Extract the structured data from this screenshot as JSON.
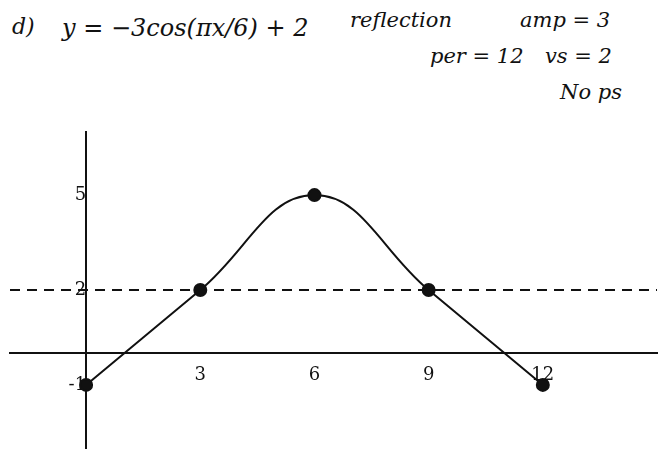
{
  "chart_data": {
    "type": "line",
    "label": "d)",
    "title": "y = −3cos(πx/6) + 2",
    "annotations": [
      "reflection",
      "amp = 3",
      "per = 12",
      "vs = 2",
      "No ps"
    ],
    "series": [
      {
        "x": [
          0,
          3,
          6,
          9,
          12
        ],
        "values": [
          -1,
          2,
          5,
          2,
          -1
        ],
        "color": "#111111",
        "marker": "circle",
        "line_style": "solid"
      },
      {
        "x": [
          -2,
          15
        ],
        "values": [
          2,
          2
        ],
        "color": "#111111",
        "marker": "none",
        "line_style": "dashed"
      }
    ],
    "xlim": [
      -2,
      15
    ],
    "xticks": [
      3,
      6,
      9,
      12
    ],
    "ylim": [
      -3,
      7
    ],
    "yticks": [
      -1,
      2,
      5
    ],
    "grid": false
  }
}
